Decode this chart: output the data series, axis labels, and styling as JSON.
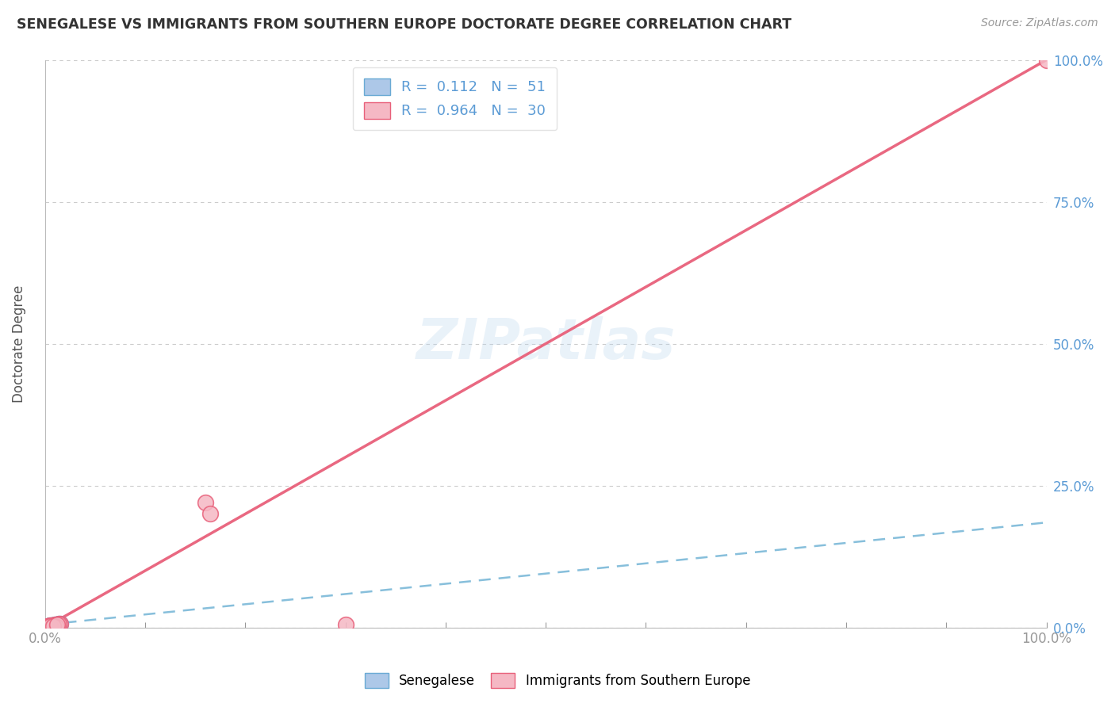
{
  "title": "SENEGALESE VS IMMIGRANTS FROM SOUTHERN EUROPE DOCTORATE DEGREE CORRELATION CHART",
  "source": "Source: ZipAtlas.com",
  "ylabel": "Doctorate Degree",
  "ytick_labels": [
    "0.0%",
    "25.0%",
    "50.0%",
    "75.0%",
    "100.0%"
  ],
  "ytick_values": [
    0,
    25,
    50,
    75,
    100
  ],
  "legend_label1": "Senegalese",
  "legend_label2": "Immigrants from Southern Europe",
  "r1": 0.112,
  "n1": 51,
  "r2": 0.964,
  "n2": 30,
  "color_blue_fill": "#adc8e8",
  "color_blue_edge": "#6aaad4",
  "color_pink_fill": "#f5b8c4",
  "color_pink_edge": "#e8607a",
  "color_blue_line": "#7ab8d8",
  "color_pink_line": "#e8607a",
  "color_axis_text": "#5b9bd5",
  "watermark": "ZIPatlas",
  "blue_scatter_x": [
    0.3,
    0.5,
    0.8,
    1.0,
    1.2,
    1.5,
    0.4,
    0.6,
    0.9,
    1.1,
    0.2,
    0.7,
    1.3,
    0.5,
    0.8,
    1.0,
    0.3,
    0.6,
    1.4,
    0.9,
    0.4,
    0.7,
    1.1,
    0.5,
    0.8,
    1.2,
    0.6,
    0.9,
    1.0,
    0.3,
    0.5,
    0.7,
    1.3,
    0.8,
    0.4,
    1.1,
    0.6,
    0.9,
    0.5,
    0.7,
    1.0,
    0.3,
    0.8,
    1.2,
    0.6,
    0.4,
    0.9,
    1.1,
    0.7,
    0.5,
    0.8
  ],
  "blue_scatter_y": [
    0.2,
    0.4,
    0.1,
    0.5,
    0.3,
    0.6,
    0.1,
    0.3,
    0.2,
    0.4,
    0.1,
    0.2,
    0.5,
    0.3,
    0.1,
    0.4,
    0.2,
    0.1,
    0.6,
    0.3,
    0.2,
    0.4,
    0.1,
    0.3,
    0.2,
    0.5,
    0.1,
    0.3,
    0.4,
    0.1,
    0.2,
    0.3,
    0.5,
    0.2,
    0.1,
    0.4,
    0.2,
    0.3,
    0.1,
    0.2,
    0.4,
    0.1,
    0.3,
    0.5,
    0.2,
    0.1,
    0.3,
    0.4,
    0.2,
    0.1,
    0.3
  ],
  "pink_scatter_x": [
    0.3,
    0.5,
    0.8,
    1.0,
    1.2,
    1.5,
    0.4,
    0.6,
    0.9,
    1.1,
    0.2,
    0.7,
    1.3,
    0.5,
    0.8,
    1.0,
    0.3,
    0.6,
    1.4,
    0.9,
    0.4,
    0.7,
    1.1,
    0.5,
    16.0,
    16.5,
    30.0,
    0.8,
    1.2,
    100.0
  ],
  "pink_scatter_y": [
    0.2,
    0.4,
    0.1,
    0.5,
    0.3,
    0.6,
    0.1,
    0.3,
    0.2,
    0.4,
    0.1,
    0.2,
    0.5,
    0.3,
    0.1,
    0.4,
    0.2,
    0.1,
    0.6,
    0.3,
    0.2,
    0.4,
    0.1,
    0.3,
    22.0,
    20.0,
    0.5,
    0.2,
    0.5,
    100.0
  ],
  "blue_line_x": [
    0,
    100
  ],
  "blue_line_y": [
    0.5,
    18.5
  ],
  "pink_line_x": [
    0,
    100
  ],
  "pink_line_y": [
    0,
    100
  ],
  "xlim": [
    0,
    100
  ],
  "ylim": [
    0,
    100
  ]
}
